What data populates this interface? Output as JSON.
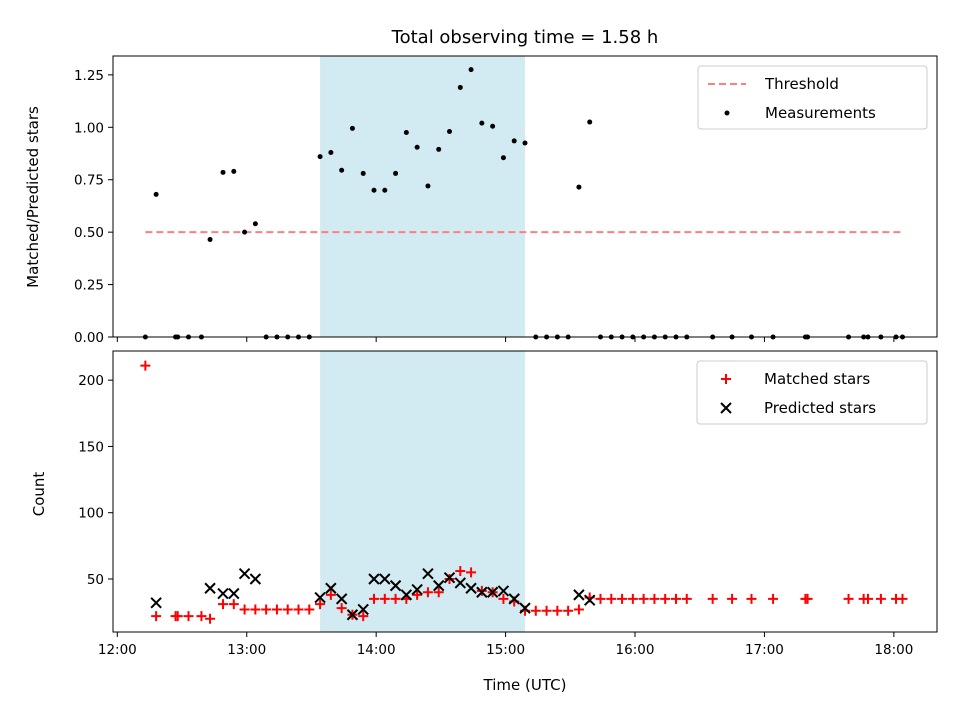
{
  "chart_data": [
    {
      "type": "scatter",
      "title": "Total observing time = 1.58 h",
      "ylabel": "Matched/Predicted stars",
      "xlim": [
        "11:58",
        "18:20"
      ],
      "ylim": [
        0,
        1.34
      ],
      "x_ticks": [
        "12:00",
        "13:00",
        "14:00",
        "15:00",
        "16:00",
        "17:00",
        "18:00"
      ],
      "y_ticks": [
        "0.00",
        "0.25",
        "0.50",
        "0.75",
        "1.00",
        "1.25"
      ],
      "highlight_band": {
        "x": [
          "13:34",
          "15:09"
        ],
        "color": "#add8e6"
      },
      "legend": {
        "placement": "top-right",
        "entries": [
          "Threshold",
          "Measurements"
        ]
      },
      "threshold": {
        "name": "Threshold",
        "y": 0.5,
        "x": [
          "12:13",
          "18:04"
        ],
        "color": "#ff7f7f",
        "style": "dashed"
      },
      "series": [
        {
          "name": "Measurements",
          "color": "#000000",
          "points": [
            [
              "12:13",
              0.0
            ],
            [
              "12:18",
              0.68
            ],
            [
              "12:27",
              0.0
            ],
            [
              "12:28",
              0.0
            ],
            [
              "12:33",
              0.0
            ],
            [
              "12:39",
              0.0
            ],
            [
              "12:43",
              0.465
            ],
            [
              "12:49",
              0.785
            ],
            [
              "12:54",
              0.79
            ],
            [
              "12:59",
              0.5
            ],
            [
              "13:04",
              0.54
            ],
            [
              "13:09",
              0.0
            ],
            [
              "13:14",
              0.0
            ],
            [
              "13:19",
              0.0
            ],
            [
              "13:24",
              0.0
            ],
            [
              "13:29",
              0.0
            ],
            [
              "13:34",
              0.86
            ],
            [
              "13:39",
              0.88
            ],
            [
              "13:44",
              0.795
            ],
            [
              "13:49",
              0.995
            ],
            [
              "13:54",
              0.78
            ],
            [
              "13:59",
              0.7
            ],
            [
              "14:04",
              0.7
            ],
            [
              "14:09",
              0.78
            ],
            [
              "14:14",
              0.975
            ],
            [
              "14:19",
              0.905
            ],
            [
              "14:24",
              0.72
            ],
            [
              "14:29",
              0.895
            ],
            [
              "14:34",
              0.98
            ],
            [
              "14:39",
              1.19
            ],
            [
              "14:44",
              1.275
            ],
            [
              "14:49",
              1.02
            ],
            [
              "14:54",
              1.005
            ],
            [
              "14:59",
              0.855
            ],
            [
              "15:04",
              0.935
            ],
            [
              "15:09",
              0.925
            ],
            [
              "15:14",
              0.0
            ],
            [
              "15:19",
              0.0
            ],
            [
              "15:24",
              0.0
            ],
            [
              "15:29",
              0.0
            ],
            [
              "15:34",
              0.715
            ],
            [
              "15:39",
              1.025
            ],
            [
              "15:44",
              0.0
            ],
            [
              "15:49",
              0.0
            ],
            [
              "15:54",
              0.0
            ],
            [
              "15:59",
              0.0
            ],
            [
              "16:04",
              0.0
            ],
            [
              "16:09",
              0.0
            ],
            [
              "16:14",
              0.0
            ],
            [
              "16:19",
              0.0
            ],
            [
              "16:24",
              0.0
            ],
            [
              "16:36",
              0.0
            ],
            [
              "16:45",
              0.0
            ],
            [
              "16:54",
              0.0
            ],
            [
              "17:04",
              0.0
            ],
            [
              "17:19",
              0.0
            ],
            [
              "17:20",
              0.0
            ],
            [
              "17:39",
              0.0
            ],
            [
              "17:46",
              0.0
            ],
            [
              "17:48",
              0.0
            ],
            [
              "17:54",
              0.0
            ],
            [
              "18:01",
              0.0
            ],
            [
              "18:04",
              0.0
            ]
          ]
        }
      ]
    },
    {
      "type": "scatter",
      "xlabel": "Time (UTC)",
      "ylabel": "Count",
      "xlim": [
        "11:58",
        "18:20"
      ],
      "ylim": [
        10,
        222
      ],
      "x_ticks": [
        "12:00",
        "13:00",
        "14:00",
        "15:00",
        "16:00",
        "17:00",
        "18:00"
      ],
      "y_ticks": [
        "50",
        "100",
        "150",
        "200"
      ],
      "highlight_band": {
        "x": [
          "13:34",
          "15:09"
        ],
        "color": "#add8e6"
      },
      "legend": {
        "placement": "top-right",
        "entries": [
          "Matched stars",
          "Predicted stars"
        ]
      },
      "series": [
        {
          "name": "Matched stars",
          "marker": "plus",
          "color": "#ff0000",
          "points": [
            [
              "12:13",
              211
            ],
            [
              "12:18",
              22
            ],
            [
              "12:27",
              22
            ],
            [
              "12:28",
              22
            ],
            [
              "12:33",
              22
            ],
            [
              "12:39",
              22
            ],
            [
              "12:43",
              20
            ],
            [
              "12:49",
              31
            ],
            [
              "12:54",
              31
            ],
            [
              "12:59",
              27
            ],
            [
              "13:04",
              27
            ],
            [
              "13:09",
              27
            ],
            [
              "13:14",
              27
            ],
            [
              "13:19",
              27
            ],
            [
              "13:24",
              27
            ],
            [
              "13:29",
              27
            ],
            [
              "13:34",
              31
            ],
            [
              "13:39",
              38
            ],
            [
              "13:44",
              28
            ],
            [
              "13:49",
              23
            ],
            [
              "13:54",
              22
            ],
            [
              "13:59",
              35
            ],
            [
              "14:04",
              35
            ],
            [
              "14:09",
              35
            ],
            [
              "14:14",
              35
            ],
            [
              "14:19",
              38
            ],
            [
              "14:24",
              40
            ],
            [
              "14:29",
              40
            ],
            [
              "14:34",
              50
            ],
            [
              "14:39",
              56
            ],
            [
              "14:44",
              55
            ],
            [
              "14:49",
              41
            ],
            [
              "14:54",
              40
            ],
            [
              "14:59",
              35
            ],
            [
              "15:04",
              33
            ],
            [
              "15:09",
              26
            ],
            [
              "15:14",
              26
            ],
            [
              "15:19",
              26
            ],
            [
              "15:24",
              26
            ],
            [
              "15:29",
              26
            ],
            [
              "15:34",
              27
            ],
            [
              "15:39",
              36
            ],
            [
              "15:44",
              35
            ],
            [
              "15:49",
              35
            ],
            [
              "15:54",
              35
            ],
            [
              "15:59",
              35
            ],
            [
              "16:04",
              35
            ],
            [
              "16:09",
              35
            ],
            [
              "16:14",
              35
            ],
            [
              "16:19",
              35
            ],
            [
              "16:24",
              35
            ],
            [
              "16:36",
              35
            ],
            [
              "16:45",
              35
            ],
            [
              "16:54",
              35
            ],
            [
              "17:04",
              35
            ],
            [
              "17:19",
              35
            ],
            [
              "17:20",
              35
            ],
            [
              "17:39",
              35
            ],
            [
              "17:46",
              35
            ],
            [
              "17:48",
              35
            ],
            [
              "17:54",
              35
            ],
            [
              "18:01",
              35
            ],
            [
              "18:04",
              35
            ]
          ]
        },
        {
          "name": "Predicted stars",
          "marker": "x",
          "color": "#000000",
          "points": [
            [
              "12:18",
              32
            ],
            [
              "12:43",
              43
            ],
            [
              "12:49",
              39
            ],
            [
              "12:54",
              39
            ],
            [
              "12:59",
              54
            ],
            [
              "13:04",
              50
            ],
            [
              "13:34",
              36
            ],
            [
              "13:39",
              43
            ],
            [
              "13:44",
              35
            ],
            [
              "13:49",
              23
            ],
            [
              "13:54",
              27
            ],
            [
              "13:59",
              50
            ],
            [
              "14:04",
              50
            ],
            [
              "14:09",
              45
            ],
            [
              "14:14",
              38
            ],
            [
              "14:19",
              42
            ],
            [
              "14:24",
              54
            ],
            [
              "14:29",
              45
            ],
            [
              "14:34",
              51
            ],
            [
              "14:39",
              47
            ],
            [
              "14:44",
              43
            ],
            [
              "14:49",
              40
            ],
            [
              "14:54",
              40
            ],
            [
              "14:59",
              41
            ],
            [
              "15:04",
              35
            ],
            [
              "15:09",
              28
            ],
            [
              "15:34",
              38
            ],
            [
              "15:39",
              34
            ]
          ]
        }
      ]
    }
  ]
}
